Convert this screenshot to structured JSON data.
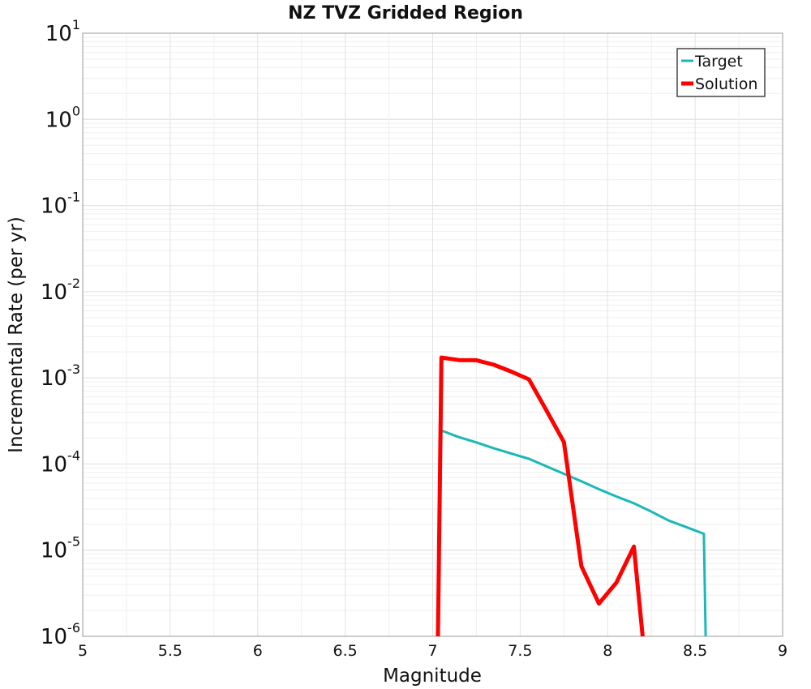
{
  "chart_data": {
    "type": "line",
    "title": "NZ TVZ Gridded Region",
    "xlabel": "Magnitude",
    "ylabel": "Incremental Rate (per yr)",
    "xlim": [
      5,
      9
    ],
    "ylim": [
      1e-06,
      10
    ],
    "yscale": "log",
    "x_ticks": [
      "5",
      "5.5",
      "6",
      "6.5",
      "7",
      "7.5",
      "8",
      "8.5",
      "9"
    ],
    "y_ticks": [
      {
        "base": "10",
        "exp": "-6"
      },
      {
        "base": "10",
        "exp": "-5"
      },
      {
        "base": "10",
        "exp": "-4"
      },
      {
        "base": "10",
        "exp": "-3"
      },
      {
        "base": "10",
        "exp": "-2"
      },
      {
        "base": "10",
        "exp": "-1"
      },
      {
        "base": "10",
        "exp": "0"
      },
      {
        "base": "10",
        "exp": "1"
      }
    ],
    "grid": true,
    "legend_position": "top-right",
    "series": [
      {
        "name": "Target",
        "color": "#1ab8b8",
        "x": [
          7.03,
          7.05,
          7.15,
          7.25,
          7.35,
          7.45,
          7.55,
          7.65,
          7.75,
          7.85,
          7.95,
          8.05,
          8.15,
          8.25,
          8.35,
          8.45,
          8.55,
          8.56
        ],
        "y": [
          1e-06,
          0.000245,
          0.000205,
          0.000178,
          0.000152,
          0.000132,
          0.000115,
          9.4e-05,
          7.7e-05,
          6.3e-05,
          5.1e-05,
          4.2e-05,
          3.5e-05,
          2.8e-05,
          2.2e-05,
          1.85e-05,
          1.55e-05,
          1e-06
        ]
      },
      {
        "name": "Solution",
        "color": "#ff0000",
        "x": [
          7.03,
          7.05,
          7.15,
          7.25,
          7.35,
          7.45,
          7.55,
          7.65,
          7.75,
          7.85,
          7.95,
          8.05,
          8.15,
          8.2
        ],
        "y": [
          1e-06,
          0.00172,
          0.00161,
          0.0016,
          0.00142,
          0.00118,
          0.00096,
          0.00042,
          0.00018,
          6.5e-06,
          2.4e-06,
          4.2e-06,
          1.1e-05,
          1e-06
        ]
      }
    ]
  }
}
